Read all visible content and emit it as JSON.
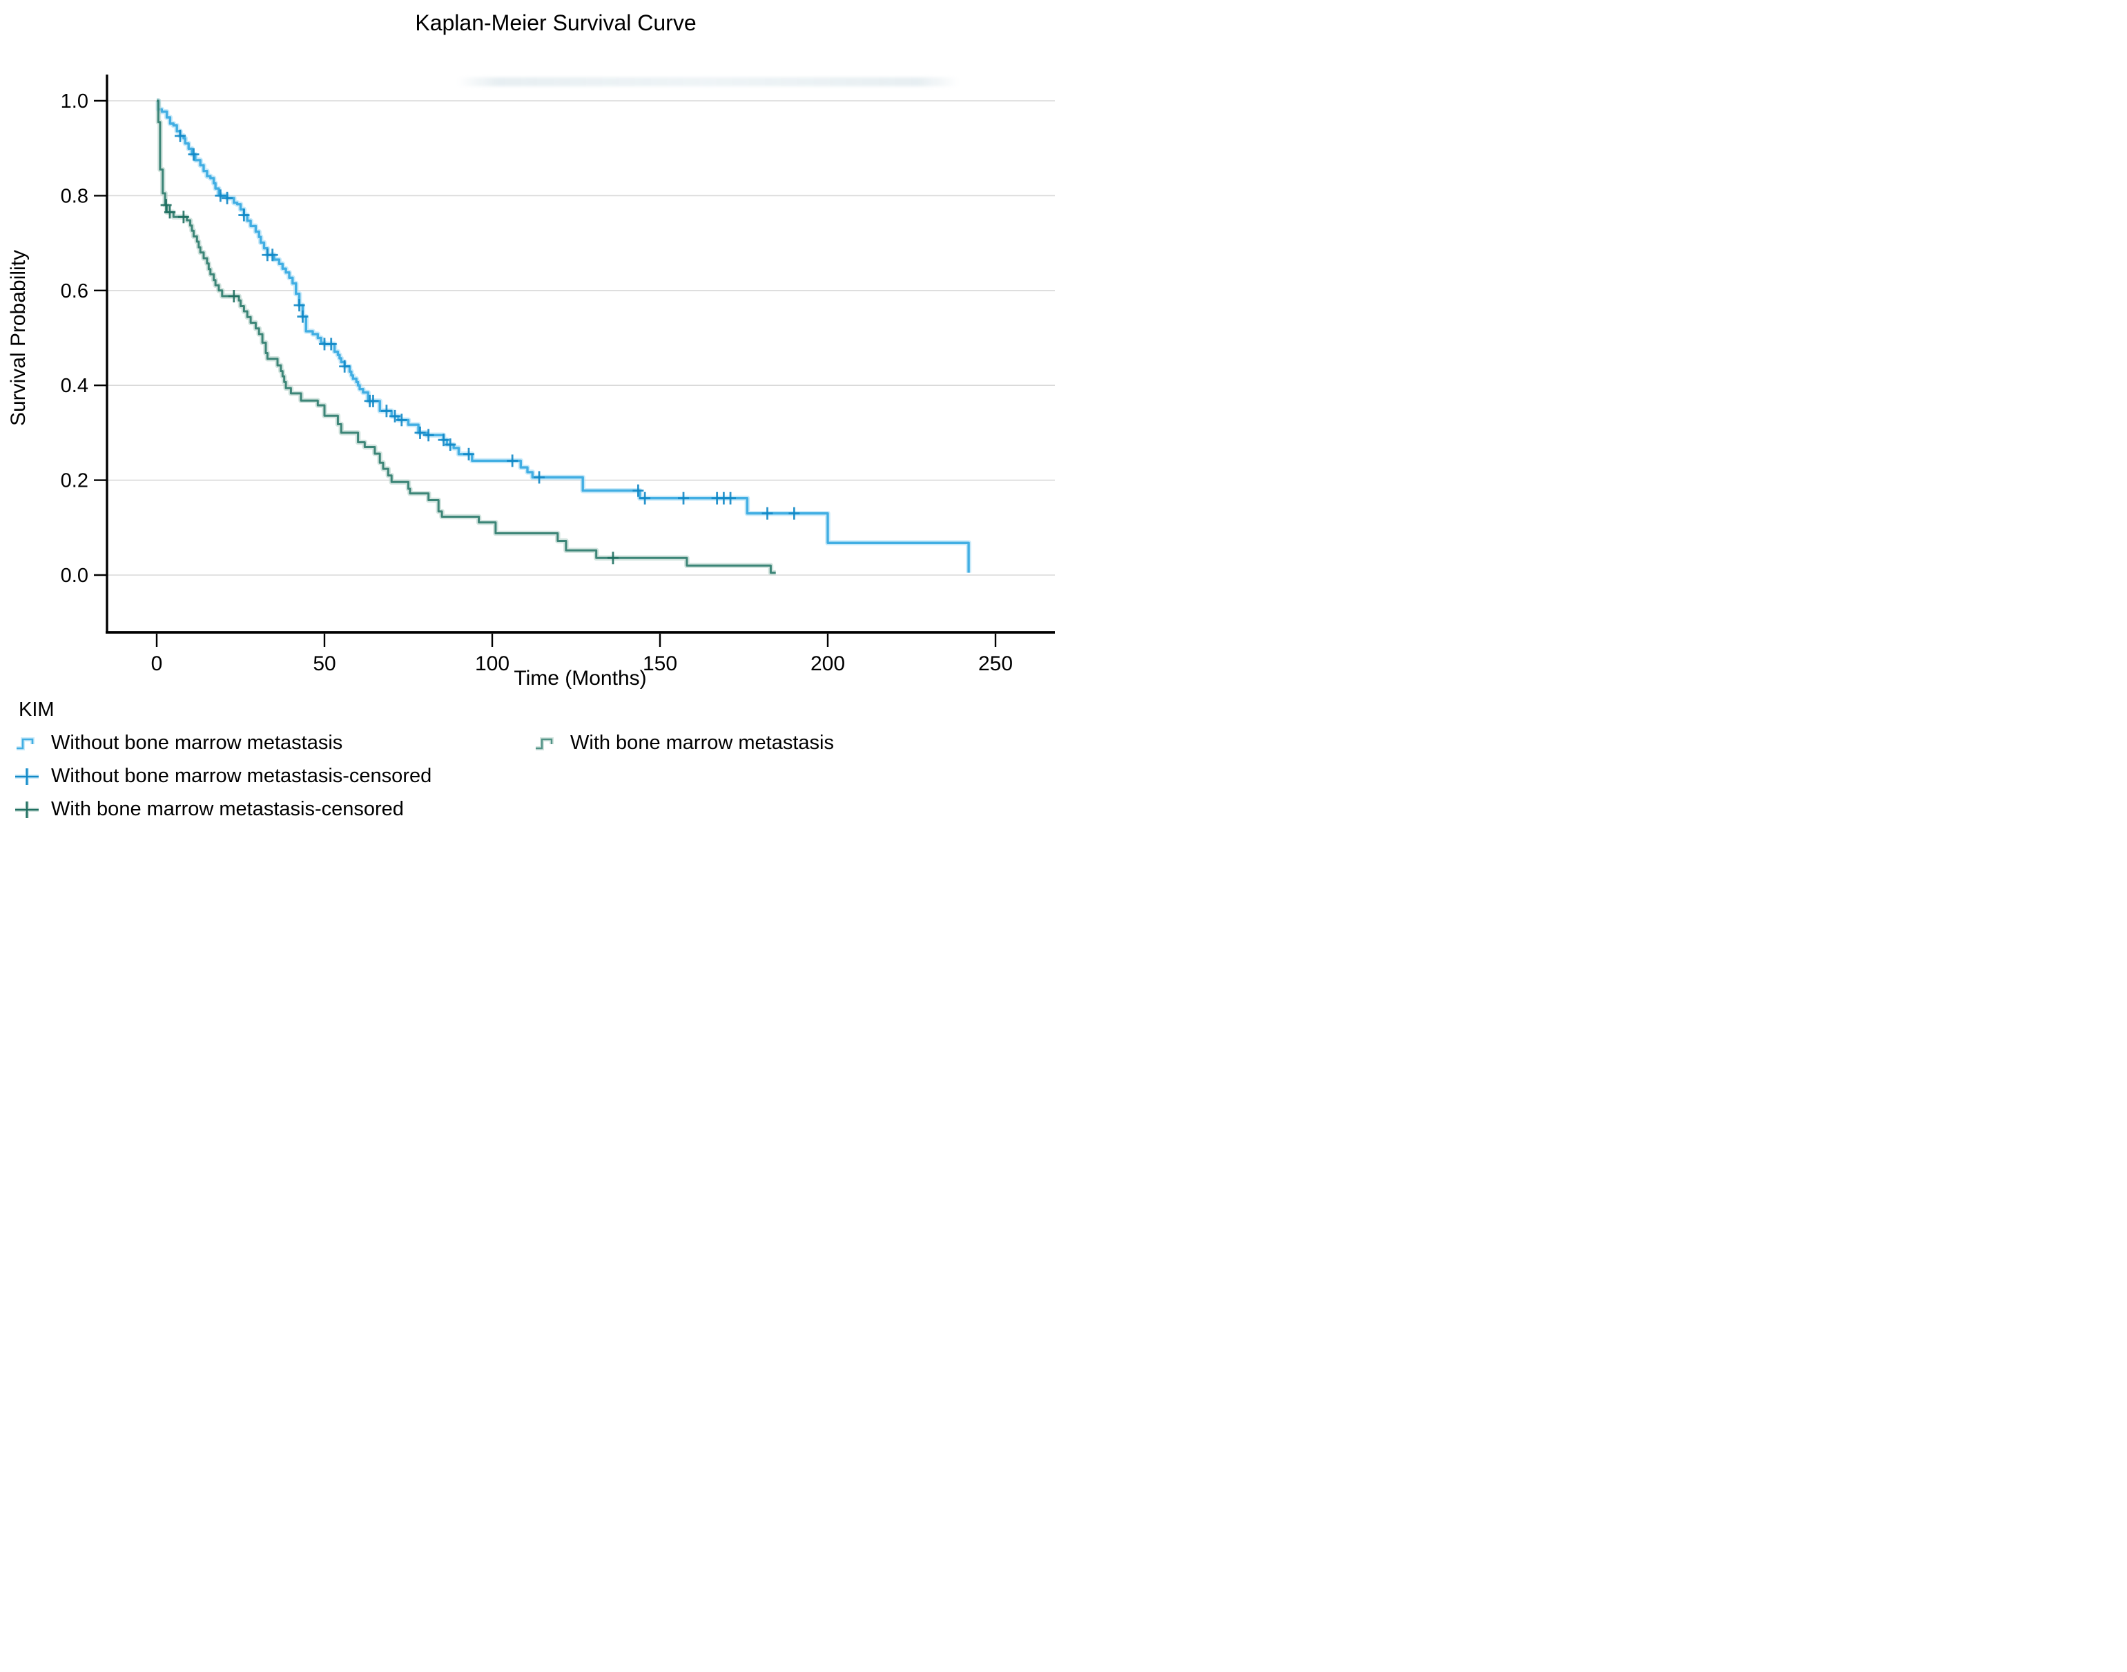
{
  "title": "Kaplan-Meier Survival Curve",
  "chart_data": {
    "type": "line",
    "subtype": "kaplan-meier-step",
    "title": "Kaplan-Meier Survival Curve",
    "xlabel": "Time (Months)",
    "ylabel": "Survival Probability",
    "xlim": [
      0,
      267
    ],
    "ylim": [
      0,
      1.0
    ],
    "xticks": {
      "values": [
        0,
        50,
        100,
        150,
        200,
        250
      ],
      "labels": [
        "0",
        "50",
        "100",
        "150",
        "200",
        "250"
      ]
    },
    "yticks": {
      "values": [
        0.0,
        0.2,
        0.4,
        0.6,
        0.8,
        1.0
      ],
      "labels": [
        "0.0",
        "0.2",
        "0.4",
        "0.6",
        "0.8",
        "1.0"
      ]
    },
    "grid": "horizontal",
    "grid_color": "#d9d9d9",
    "axis_color": "#000000",
    "legend": {
      "title": "KIM",
      "items": [
        {
          "label": "Without bone marrow metastasis",
          "icon": "step",
          "series": 0
        },
        {
          "label": "With bone marrow metastasis",
          "icon": "step",
          "series": 1
        },
        {
          "label": "Without bone marrow metastasis-censored",
          "icon": "censor",
          "series": 0
        },
        {
          "label": "With bone marrow metastasis-censored",
          "icon": "censor",
          "series": 1
        }
      ]
    },
    "series": [
      {
        "name": "Without bone marrow metastasis",
        "color": "#41aee3",
        "halo_color": "#9ed9f4",
        "censor_color": "#1289c7",
        "end_flat_months": 0,
        "steps": [
          [
            0,
            1.0
          ],
          [
            0.5,
            0.982
          ],
          [
            1.5,
            0.977
          ],
          [
            3,
            0.965
          ],
          [
            4,
            0.952
          ],
          [
            5,
            0.948
          ],
          [
            6,
            0.936
          ],
          [
            7,
            0.926
          ],
          [
            8,
            0.921
          ],
          [
            8.5,
            0.91
          ],
          [
            9.5,
            0.899
          ],
          [
            10.5,
            0.887
          ],
          [
            11.5,
            0.875
          ],
          [
            13,
            0.864
          ],
          [
            14,
            0.852
          ],
          [
            15,
            0.841
          ],
          [
            16,
            0.837
          ],
          [
            17,
            0.826
          ],
          [
            17.5,
            0.815
          ],
          [
            18.5,
            0.803
          ],
          [
            19,
            0.8
          ],
          [
            21,
            0.795
          ],
          [
            23,
            0.785
          ],
          [
            24,
            0.782
          ],
          [
            25,
            0.771
          ],
          [
            26,
            0.759
          ],
          [
            27,
            0.747
          ],
          [
            28,
            0.736
          ],
          [
            29.5,
            0.724
          ],
          [
            30.5,
            0.713
          ],
          [
            31,
            0.701
          ],
          [
            32,
            0.689
          ],
          [
            33,
            0.675
          ],
          [
            35,
            0.665
          ],
          [
            36.5,
            0.656
          ],
          [
            37.5,
            0.646
          ],
          [
            38.5,
            0.638
          ],
          [
            39.5,
            0.627
          ],
          [
            40.5,
            0.615
          ],
          [
            41.5,
            0.593
          ],
          [
            42.5,
            0.569
          ],
          [
            43.5,
            0.545
          ],
          [
            44.5,
            0.514
          ],
          [
            46.5,
            0.508
          ],
          [
            48,
            0.5
          ],
          [
            49,
            0.49
          ],
          [
            50,
            0.487
          ],
          [
            53,
            0.471
          ],
          [
            54,
            0.464
          ],
          [
            54.5,
            0.457
          ],
          [
            55,
            0.449
          ],
          [
            56,
            0.44
          ],
          [
            57.5,
            0.429
          ],
          [
            58,
            0.421
          ],
          [
            58.5,
            0.414
          ],
          [
            59.5,
            0.407
          ],
          [
            60,
            0.4
          ],
          [
            60.5,
            0.392
          ],
          [
            61.5,
            0.385
          ],
          [
            63,
            0.367
          ],
          [
            66.5,
            0.346
          ],
          [
            70,
            0.335
          ],
          [
            72,
            0.327
          ],
          [
            75,
            0.317
          ],
          [
            78,
            0.3
          ],
          [
            80.5,
            0.295
          ],
          [
            85.5,
            0.285
          ],
          [
            86.5,
            0.275
          ],
          [
            88.5,
            0.268
          ],
          [
            90,
            0.255
          ],
          [
            94,
            0.241
          ],
          [
            108.5,
            0.227
          ],
          [
            110.5,
            0.217
          ],
          [
            112,
            0.206
          ],
          [
            127,
            0.178
          ],
          [
            144,
            0.162
          ],
          [
            176,
            0.13
          ],
          [
            200,
            0.068
          ],
          [
            242,
            0.005
          ]
        ],
        "censor_times": [
          7,
          11,
          19,
          21,
          26,
          33,
          34.5,
          42.5,
          43.5,
          50,
          52,
          56,
          63.5,
          64.5,
          68.5,
          71,
          73,
          78.5,
          81,
          85.5,
          87.5,
          93,
          106,
          114,
          143.5,
          145.5,
          157,
          167,
          169,
          171,
          182,
          190
        ]
      },
      {
        "name": "With bone marrow metastasis",
        "color": "#2f7d6e",
        "halo_color": "#aecdc5",
        "censor_color": "#1f6f60",
        "end_flat_months": 1.5,
        "steps": [
          [
            0,
            1.0
          ],
          [
            0.5,
            0.955
          ],
          [
            1,
            0.855
          ],
          [
            1.8,
            0.805
          ],
          [
            2.5,
            0.78
          ],
          [
            3,
            0.765
          ],
          [
            5,
            0.755
          ],
          [
            9,
            0.748
          ],
          [
            10,
            0.737
          ],
          [
            10.5,
            0.726
          ],
          [
            11,
            0.714
          ],
          [
            12,
            0.703
          ],
          [
            12.5,
            0.691
          ],
          [
            13,
            0.68
          ],
          [
            14,
            0.668
          ],
          [
            15,
            0.657
          ],
          [
            15.5,
            0.645
          ],
          [
            16,
            0.634
          ],
          [
            17,
            0.622
          ],
          [
            17.5,
            0.611
          ],
          [
            18.5,
            0.6
          ],
          [
            19.5,
            0.588
          ],
          [
            24.5,
            0.579
          ],
          [
            25,
            0.567
          ],
          [
            26,
            0.556
          ],
          [
            27,
            0.544
          ],
          [
            28,
            0.532
          ],
          [
            29.5,
            0.52
          ],
          [
            30.5,
            0.508
          ],
          [
            31.5,
            0.49
          ],
          [
            32.5,
            0.468
          ],
          [
            33,
            0.456
          ],
          [
            36,
            0.442
          ],
          [
            37,
            0.43
          ],
          [
            37.5,
            0.419
          ],
          [
            38,
            0.407
          ],
          [
            38.5,
            0.394
          ],
          [
            40,
            0.383
          ],
          [
            43,
            0.368
          ],
          [
            48,
            0.358
          ],
          [
            50,
            0.336
          ],
          [
            54,
            0.318
          ],
          [
            55,
            0.3
          ],
          [
            60,
            0.28
          ],
          [
            62,
            0.27
          ],
          [
            65,
            0.256
          ],
          [
            66.5,
            0.237
          ],
          [
            67.5,
            0.224
          ],
          [
            69,
            0.21
          ],
          [
            70,
            0.196
          ],
          [
            75,
            0.182
          ],
          [
            75.5,
            0.172
          ],
          [
            81,
            0.158
          ],
          [
            84,
            0.134
          ],
          [
            85,
            0.123
          ],
          [
            96,
            0.111
          ],
          [
            101,
            0.088
          ],
          [
            119.5,
            0.072
          ],
          [
            122,
            0.052
          ],
          [
            131,
            0.036
          ],
          [
            158,
            0.02
          ],
          [
            183,
            0.005
          ]
        ],
        "censor_times": [
          2.8,
          3.9,
          8,
          23,
          136
        ]
      }
    ]
  }
}
